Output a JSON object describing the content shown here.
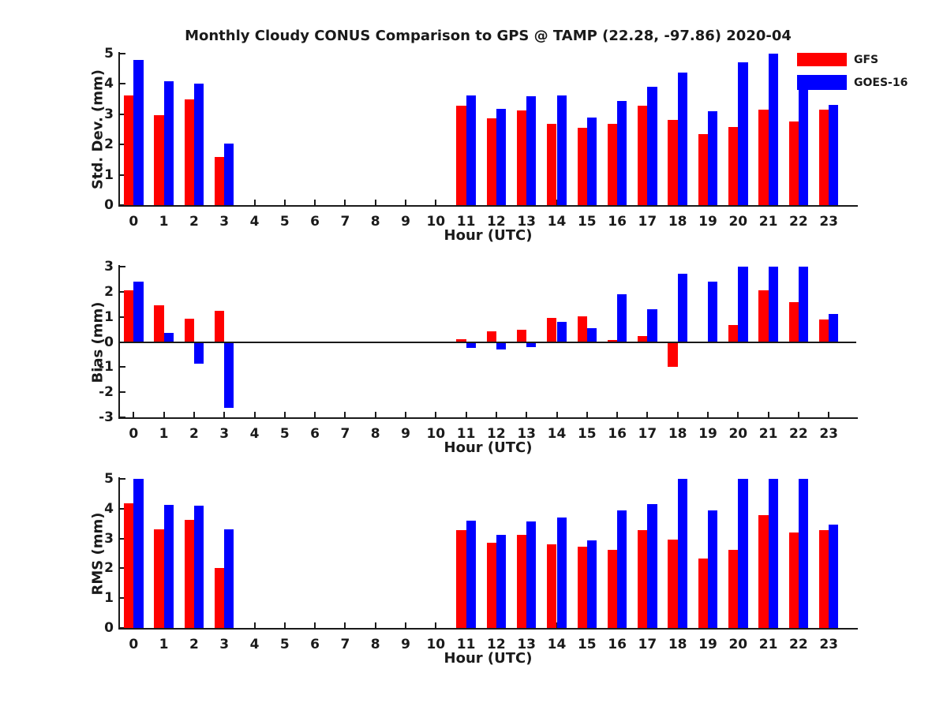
{
  "title": "Monthly Cloudy CONUS Comparison to GPS @ TAMP (22.28, -97.86) 2020-04",
  "legend": {
    "position": "top-right",
    "items": [
      {
        "label": "GFS",
        "color": "#ff0000"
      },
      {
        "label": "GOES-16",
        "color": "#0000ff"
      }
    ]
  },
  "chart_data": [
    {
      "type": "bar",
      "name": "std-dev-panel",
      "ylabel": "Std. Dev. (mm)",
      "xlabel": "Hour (UTC)",
      "ylim": [
        0,
        5
      ],
      "yticks": [
        0,
        1,
        2,
        3,
        4,
        5
      ],
      "grid": false,
      "categories": [
        "0",
        "1",
        "2",
        "3",
        "4",
        "5",
        "6",
        "7",
        "8",
        "9",
        "10",
        "11",
        "12",
        "13",
        "14",
        "15",
        "16",
        "17",
        "18",
        "19",
        "20",
        "21",
        "22",
        "23"
      ],
      "series": [
        {
          "name": "GFS",
          "color": "#ff0000",
          "values": [
            3.62,
            2.97,
            3.5,
            1.6,
            null,
            null,
            null,
            null,
            null,
            null,
            null,
            3.28,
            2.86,
            3.12,
            2.67,
            2.54,
            2.67,
            3.29,
            2.8,
            2.35,
            2.58,
            3.15,
            2.77,
            3.15
          ]
        },
        {
          "name": "GOES-16",
          "color": "#0000ff",
          "values": [
            4.8,
            4.1,
            4.0,
            2.02,
            null,
            null,
            null,
            null,
            null,
            null,
            null,
            3.62,
            3.17,
            3.6,
            3.63,
            2.9,
            3.43,
            3.9,
            4.37,
            3.1,
            4.72,
            5.0,
            4.3,
            3.3
          ]
        }
      ]
    },
    {
      "type": "bar",
      "name": "bias-panel",
      "ylabel": "Bias (mm)",
      "xlabel": "Hour (UTC)",
      "ylim": [
        -3,
        3
      ],
      "yticks": [
        -3,
        -2,
        -1,
        0,
        1,
        2,
        3
      ],
      "grid": false,
      "categories": [
        "0",
        "1",
        "2",
        "3",
        "4",
        "5",
        "6",
        "7",
        "8",
        "9",
        "10",
        "11",
        "12",
        "13",
        "14",
        "15",
        "16",
        "17",
        "18",
        "19",
        "20",
        "21",
        "22",
        "23"
      ],
      "series": [
        {
          "name": "GFS",
          "color": "#ff0000",
          "values": [
            2.05,
            1.45,
            0.93,
            1.25,
            null,
            null,
            null,
            null,
            null,
            null,
            null,
            0.1,
            0.42,
            0.48,
            0.96,
            1.02,
            0.08,
            0.23,
            -1.0,
            0.03,
            0.66,
            2.05,
            1.6,
            0.9
          ]
        },
        {
          "name": "GOES-16",
          "color": "#0000ff",
          "values": [
            2.4,
            0.35,
            -0.85,
            -2.62,
            null,
            null,
            null,
            null,
            null,
            null,
            null,
            -0.25,
            -0.3,
            -0.2,
            0.79,
            0.55,
            1.9,
            1.31,
            2.72,
            2.4,
            3.0,
            3.0,
            3.0,
            1.12
          ]
        }
      ]
    },
    {
      "type": "bar",
      "name": "rms-panel",
      "ylabel": "RMS (mm)",
      "xlabel": "Hour (UTC)",
      "ylim": [
        0,
        5
      ],
      "yticks": [
        0,
        1,
        2,
        3,
        4,
        5
      ],
      "grid": false,
      "categories": [
        "0",
        "1",
        "2",
        "3",
        "4",
        "5",
        "6",
        "7",
        "8",
        "9",
        "10",
        "11",
        "12",
        "13",
        "14",
        "15",
        "16",
        "17",
        "18",
        "19",
        "20",
        "21",
        "22",
        "23"
      ],
      "series": [
        {
          "name": "GFS",
          "color": "#ff0000",
          "values": [
            4.18,
            3.3,
            3.62,
            2.02,
            null,
            null,
            null,
            null,
            null,
            null,
            null,
            3.27,
            2.86,
            3.12,
            2.81,
            2.73,
            2.63,
            3.27,
            2.95,
            2.32,
            2.63,
            3.77,
            3.2,
            3.27
          ]
        },
        {
          "name": "GOES-16",
          "color": "#0000ff",
          "values": [
            5.0,
            4.12,
            4.1,
            3.3,
            null,
            null,
            null,
            null,
            null,
            null,
            null,
            3.6,
            3.12,
            3.57,
            3.7,
            2.93,
            3.94,
            4.15,
            5.0,
            3.94,
            5.0,
            5.0,
            5.0,
            3.47
          ]
        }
      ]
    }
  ]
}
